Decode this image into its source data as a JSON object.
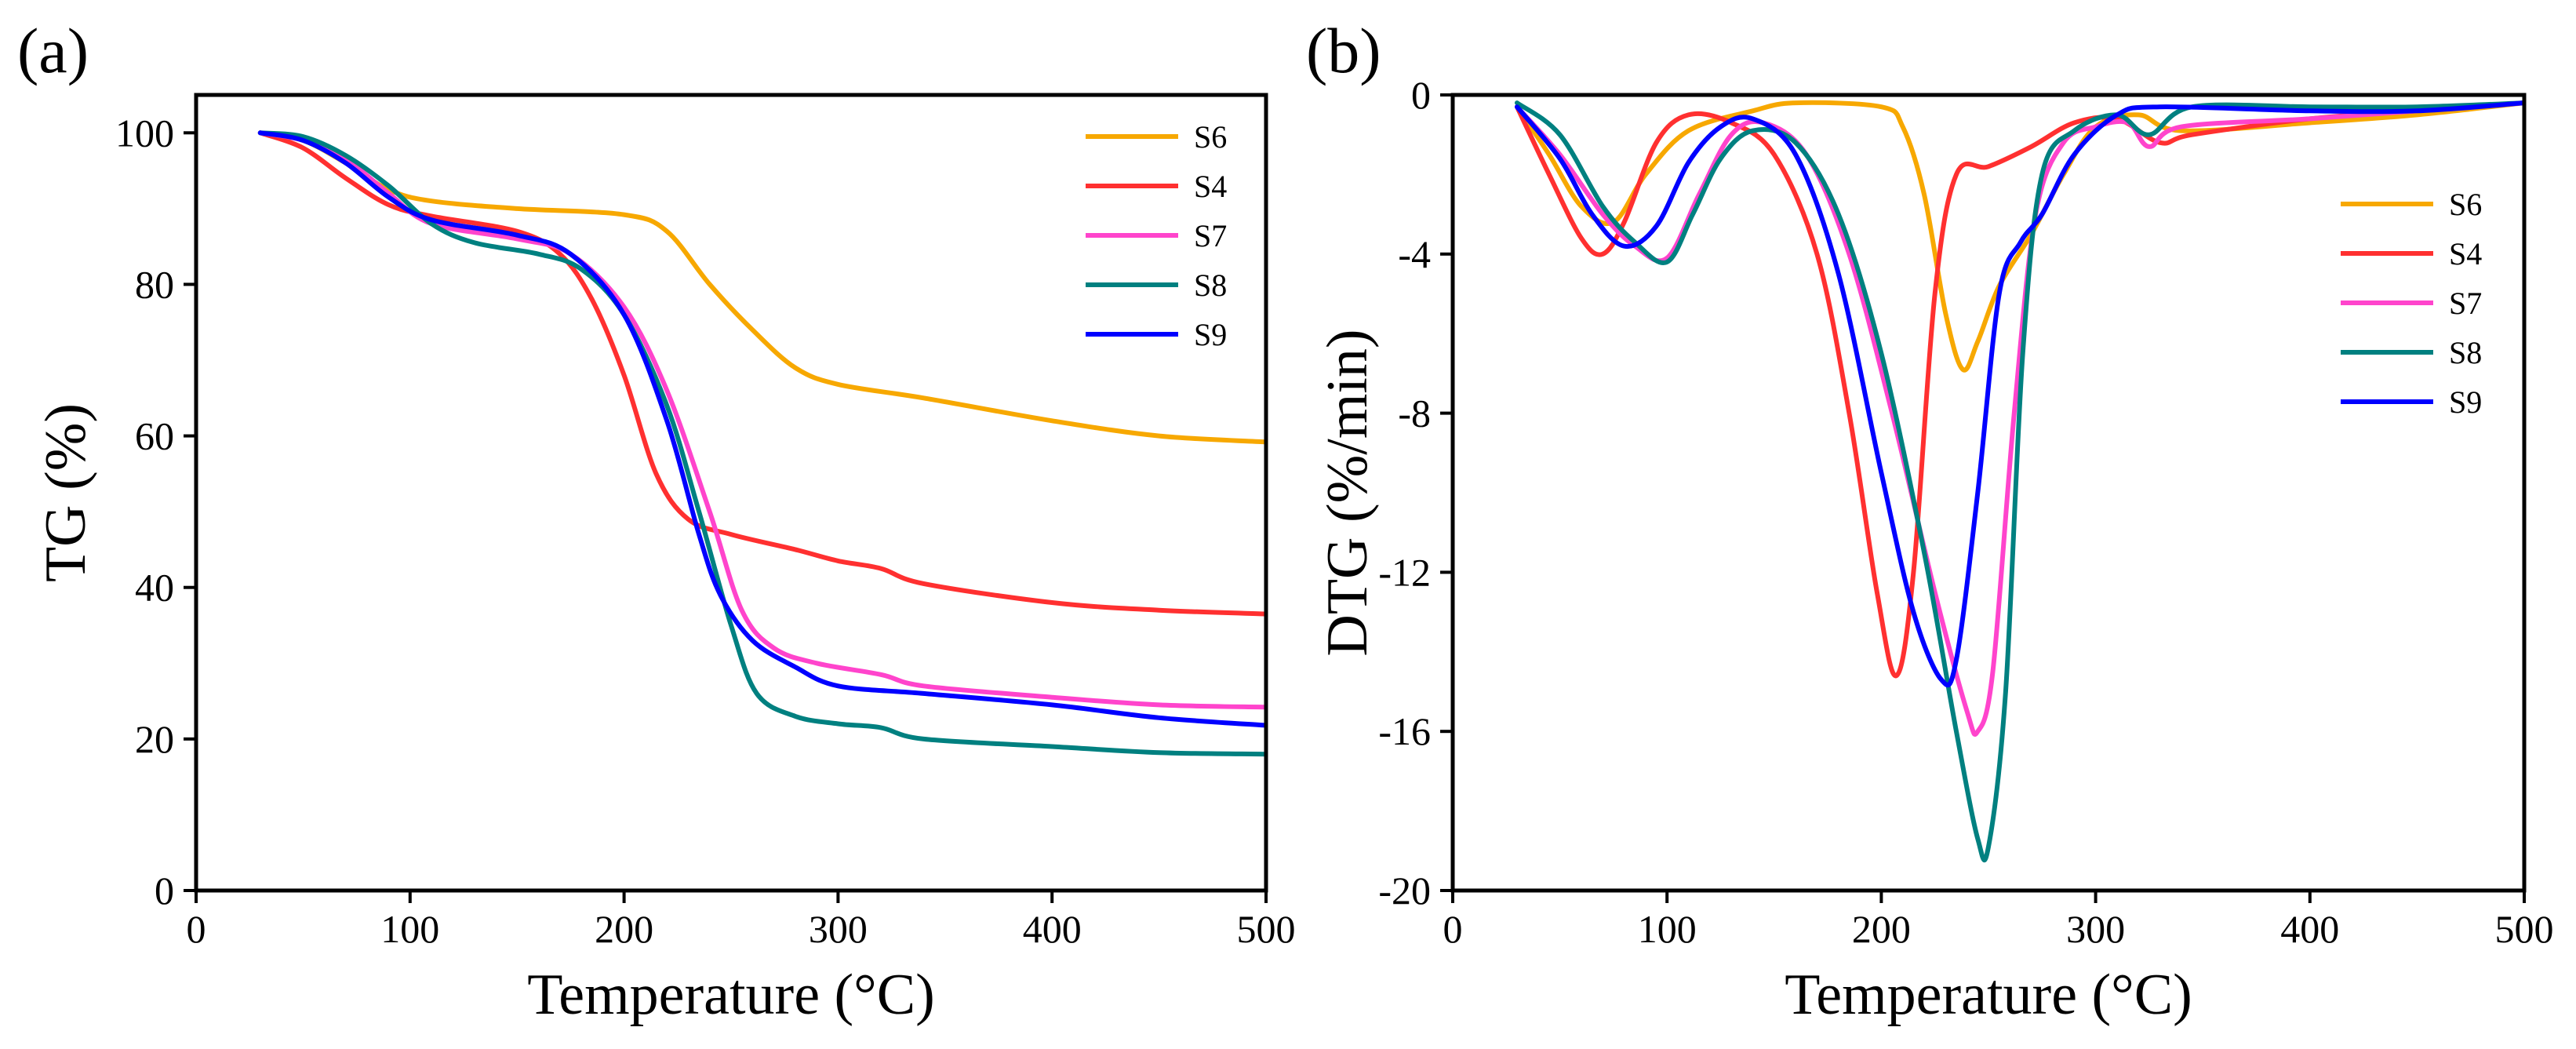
{
  "chart_data": [
    {
      "type": "line",
      "panel_label": "(a)",
      "xlabel": "Temperature (°C)",
      "ylabel": "TG (%)",
      "xlim": [
        0,
        500
      ],
      "ylim": [
        0,
        105
      ],
      "xticks": [
        0,
        100,
        200,
        300,
        400,
        500
      ],
      "yticks": [
        0,
        20,
        40,
        60,
        80,
        100
      ],
      "x_tick_labels": [
        "0",
        "100",
        "200",
        "300",
        "400",
        "500"
      ],
      "y_tick_labels": [
        "0",
        "20",
        "40",
        "60",
        "80",
        "100"
      ],
      "legend_position": "top-right",
      "series": [
        {
          "name": "S6",
          "color": "#f7a800",
          "points": [
            [
              30,
              100
            ],
            [
              50,
              99
            ],
            [
              70,
              96
            ],
            [
              90,
              92.5
            ],
            [
              110,
              91
            ],
            [
              150,
              90
            ],
            [
              200,
              89.2
            ],
            [
              220,
              87
            ],
            [
              240,
              80
            ],
            [
              260,
              74
            ],
            [
              280,
              69
            ],
            [
              300,
              66.8
            ],
            [
              340,
              65
            ],
            [
              400,
              62
            ],
            [
              450,
              60
            ],
            [
              500,
              59.2
            ]
          ]
        },
        {
          "name": "S4",
          "color": "#ff3030",
          "points": [
            [
              30,
              100
            ],
            [
              50,
              98
            ],
            [
              70,
              94
            ],
            [
              90,
              90.5
            ],
            [
              110,
              89
            ],
            [
              150,
              87
            ],
            [
              170,
              84
            ],
            [
              185,
              78
            ],
            [
              200,
              68
            ],
            [
              215,
              55
            ],
            [
              230,
              49
            ],
            [
              250,
              47
            ],
            [
              280,
              45
            ],
            [
              300,
              43.5
            ],
            [
              320,
              42.5
            ],
            [
              340,
              40.5
            ],
            [
              400,
              38
            ],
            [
              450,
              37
            ],
            [
              500,
              36.5
            ]
          ]
        },
        {
          "name": "S7",
          "color": "#ff44cc",
          "points": [
            [
              30,
              100
            ],
            [
              50,
              99
            ],
            [
              70,
              96.5
            ],
            [
              90,
              92
            ],
            [
              110,
              88
            ],
            [
              150,
              86
            ],
            [
              175,
              84
            ],
            [
              200,
              77
            ],
            [
              220,
              66
            ],
            [
              240,
              50
            ],
            [
              255,
              37
            ],
            [
              270,
              32
            ],
            [
              290,
              30
            ],
            [
              320,
              28.5
            ],
            [
              340,
              27
            ],
            [
              400,
              25.5
            ],
            [
              450,
              24.5
            ],
            [
              500,
              24.2
            ]
          ]
        },
        {
          "name": "S8",
          "color": "#008080",
          "points": [
            [
              30,
              100
            ],
            [
              50,
              99.5
            ],
            [
              70,
              97
            ],
            [
              90,
              93
            ],
            [
              110,
              88
            ],
            [
              130,
              85.5
            ],
            [
              160,
              84
            ],
            [
              180,
              82
            ],
            [
              200,
              76
            ],
            [
              220,
              64
            ],
            [
              235,
              50
            ],
            [
              250,
              35
            ],
            [
              262,
              26
            ],
            [
              280,
              23
            ],
            [
              300,
              22
            ],
            [
              320,
              21.5
            ],
            [
              340,
              20
            ],
            [
              400,
              19
            ],
            [
              450,
              18.2
            ],
            [
              500,
              18
            ]
          ]
        },
        {
          "name": "S9",
          "color": "#0000ff",
          "points": [
            [
              30,
              100
            ],
            [
              50,
              99
            ],
            [
              70,
              96
            ],
            [
              90,
              91.5
            ],
            [
              110,
              88.5
            ],
            [
              150,
              86.5
            ],
            [
              175,
              84
            ],
            [
              200,
              76
            ],
            [
              220,
              62
            ],
            [
              235,
              47
            ],
            [
              245,
              39
            ],
            [
              260,
              33
            ],
            [
              280,
              29.5
            ],
            [
              300,
              27
            ],
            [
              340,
              26
            ],
            [
              400,
              24.5
            ],
            [
              450,
              22.8
            ],
            [
              500,
              21.8
            ]
          ]
        }
      ]
    },
    {
      "type": "line",
      "panel_label": "(b)",
      "xlabel": "Temperature (°C)",
      "ylabel": "DTG (%/min)",
      "xlim": [
        0,
        500
      ],
      "ylim": [
        -20,
        0
      ],
      "xticks": [
        0,
        100,
        200,
        300,
        400,
        500
      ],
      "yticks": [
        0,
        -4,
        -8,
        -12,
        -16,
        -20
      ],
      "x_tick_labels": [
        "0",
        "100",
        "200",
        "300",
        "400",
        "500"
      ],
      "y_tick_labels": [
        "0",
        "-4",
        "-8",
        "-12",
        "-16",
        "-20"
      ],
      "legend_position": "top-right",
      "series": [
        {
          "name": "S6",
          "color": "#f7a800",
          "points": [
            [
              30,
              -0.3
            ],
            [
              45,
              -1.5
            ],
            [
              60,
              -2.8
            ],
            [
              75,
              -3.2
            ],
            [
              90,
              -2
            ],
            [
              110,
              -0.9
            ],
            [
              140,
              -0.4
            ],
            [
              160,
              -0.2
            ],
            [
              200,
              -0.3
            ],
            [
              210,
              -0.8
            ],
            [
              220,
              -2.5
            ],
            [
              230,
              -5.5
            ],
            [
              238,
              -6.9
            ],
            [
              245,
              -6.2
            ],
            [
              255,
              -4.8
            ],
            [
              270,
              -3.5
            ],
            [
              285,
              -2
            ],
            [
              300,
              -0.8
            ],
            [
              320,
              -0.5
            ],
            [
              340,
              -0.9
            ],
            [
              400,
              -0.7
            ],
            [
              450,
              -0.5
            ],
            [
              500,
              -0.2
            ]
          ]
        },
        {
          "name": "S4",
          "color": "#ff3030",
          "points": [
            [
              30,
              -0.3
            ],
            [
              45,
              -2
            ],
            [
              60,
              -3.6
            ],
            [
              70,
              -4
            ],
            [
              80,
              -3.2
            ],
            [
              95,
              -1.2
            ],
            [
              110,
              -0.5
            ],
            [
              130,
              -0.7
            ],
            [
              150,
              -1.5
            ],
            [
              170,
              -4
            ],
            [
              185,
              -8
            ],
            [
              198,
              -12.5
            ],
            [
              207,
              -14.6
            ],
            [
              215,
              -12
            ],
            [
              225,
              -5
            ],
            [
              235,
              -2
            ],
            [
              250,
              -1.8
            ],
            [
              270,
              -1.3
            ],
            [
              290,
              -0.7
            ],
            [
              310,
              -0.6
            ],
            [
              330,
              -1.2
            ],
            [
              345,
              -1
            ],
            [
              400,
              -0.6
            ],
            [
              450,
              -0.4
            ],
            [
              500,
              -0.2
            ]
          ]
        },
        {
          "name": "S7",
          "color": "#ff44cc",
          "points": [
            [
              30,
              -0.3
            ],
            [
              50,
              -1.5
            ],
            [
              70,
              -3
            ],
            [
              85,
              -3.8
            ],
            [
              100,
              -4.1
            ],
            [
              115,
              -2.5
            ],
            [
              130,
              -1
            ],
            [
              145,
              -0.7
            ],
            [
              165,
              -1.5
            ],
            [
              185,
              -4
            ],
            [
              205,
              -8
            ],
            [
              225,
              -12.5
            ],
            [
              240,
              -15.5
            ],
            [
              245,
              -16
            ],
            [
              252,
              -14.5
            ],
            [
              262,
              -8
            ],
            [
              272,
              -3
            ],
            [
              285,
              -1.2
            ],
            [
              300,
              -0.8
            ],
            [
              315,
              -0.7
            ],
            [
              325,
              -1.3
            ],
            [
              340,
              -0.8
            ],
            [
              400,
              -0.6
            ],
            [
              450,
              -0.4
            ],
            [
              500,
              -0.2
            ]
          ]
        },
        {
          "name": "S8",
          "color": "#008080",
          "points": [
            [
              30,
              -0.2
            ],
            [
              50,
              -1
            ],
            [
              70,
              -2.8
            ],
            [
              85,
              -3.7
            ],
            [
              100,
              -4.2
            ],
            [
              112,
              -3
            ],
            [
              125,
              -1.6
            ],
            [
              140,
              -0.9
            ],
            [
              160,
              -1.2
            ],
            [
              180,
              -3
            ],
            [
              200,
              -6.5
            ],
            [
              220,
              -11.5
            ],
            [
              235,
              -16
            ],
            [
              245,
              -18.7
            ],
            [
              250,
              -18.9
            ],
            [
              258,
              -15
            ],
            [
              266,
              -6.5
            ],
            [
              275,
              -2
            ],
            [
              290,
              -0.9
            ],
            [
              310,
              -0.5
            ],
            [
              325,
              -1
            ],
            [
              345,
              -0.3
            ],
            [
              400,
              -0.3
            ],
            [
              450,
              -0.3
            ],
            [
              500,
              -0.2
            ]
          ]
        },
        {
          "name": "S9",
          "color": "#0000ff",
          "points": [
            [
              30,
              -0.3
            ],
            [
              50,
              -1.6
            ],
            [
              65,
              -3
            ],
            [
              80,
              -3.8
            ],
            [
              95,
              -3.3
            ],
            [
              110,
              -1.7
            ],
            [
              125,
              -0.8
            ],
            [
              140,
              -0.6
            ],
            [
              160,
              -1.5
            ],
            [
              180,
              -4.5
            ],
            [
              200,
              -9.5
            ],
            [
              215,
              -13
            ],
            [
              228,
              -14.7
            ],
            [
              235,
              -14.2
            ],
            [
              245,
              -10
            ],
            [
              255,
              -5
            ],
            [
              265,
              -3.7
            ],
            [
              275,
              -3
            ],
            [
              290,
              -1.5
            ],
            [
              310,
              -0.5
            ],
            [
              330,
              -0.3
            ],
            [
              400,
              -0.4
            ],
            [
              450,
              -0.4
            ],
            [
              500,
              -0.2
            ]
          ]
        }
      ]
    }
  ]
}
